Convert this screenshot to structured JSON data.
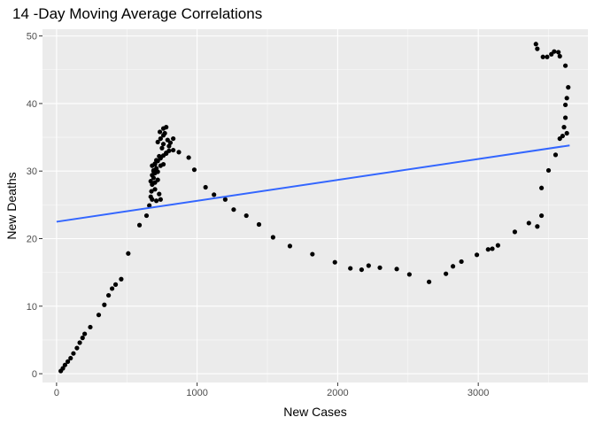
{
  "chart_data": {
    "type": "scatter",
    "title": "14 -Day Moving Average Correlations",
    "xlabel": "New  Cases",
    "ylabel": "New Deaths",
    "xlim": [
      -100,
      3780
    ],
    "ylim": [
      -1.3,
      51
    ],
    "x_ticks": [
      0,
      1000,
      2000,
      3000
    ],
    "x_tick_labels": [
      "0",
      "1000",
      "2000",
      "3000"
    ],
    "y_ticks": [
      0,
      10,
      20,
      30,
      40,
      50
    ],
    "y_tick_labels": [
      "0",
      "10",
      "20",
      "30",
      "40",
      "50"
    ],
    "grid": true,
    "legend": "none",
    "colors": {
      "panel": "#ebebeb",
      "grid_major": "#ffffff",
      "points": "#000000",
      "trend_line": "#3366ff"
    },
    "points": [
      [
        30,
        0.4
      ],
      [
        45,
        0.8
      ],
      [
        60,
        1.3
      ],
      [
        80,
        1.8
      ],
      [
        100,
        2.3
      ],
      [
        120,
        3.0
      ],
      [
        145,
        3.8
      ],
      [
        165,
        4.6
      ],
      [
        185,
        5.3
      ],
      [
        200,
        5.9
      ],
      [
        240,
        6.9
      ],
      [
        300,
        8.7
      ],
      [
        340,
        10.2
      ],
      [
        370,
        11.6
      ],
      [
        395,
        12.6
      ],
      [
        420,
        13.2
      ],
      [
        460,
        14.0
      ],
      [
        510,
        17.8
      ],
      [
        590,
        22.0
      ],
      [
        640,
        23.4
      ],
      [
        660,
        24.9
      ],
      [
        670,
        26.2
      ],
      [
        675,
        27.0
      ],
      [
        680,
        28.0
      ],
      [
        670,
        28.5
      ],
      [
        690,
        29.0
      ],
      [
        680,
        29.4
      ],
      [
        700,
        29.7
      ],
      [
        690,
        30.1
      ],
      [
        710,
        30.4
      ],
      [
        680,
        30.8
      ],
      [
        700,
        31.1
      ],
      [
        720,
        31.5
      ],
      [
        740,
        31.9
      ],
      [
        760,
        32.3
      ],
      [
        780,
        32.6
      ],
      [
        800,
        33.0
      ],
      [
        830,
        33.1
      ],
      [
        680,
        25.8
      ],
      [
        700,
        28.3
      ],
      [
        720,
        29.9
      ],
      [
        740,
        30.8
      ],
      [
        710,
        31.6
      ],
      [
        730,
        32.2
      ],
      [
        750,
        33.4
      ],
      [
        720,
        34.3
      ],
      [
        740,
        34.8
      ],
      [
        760,
        35.3
      ],
      [
        735,
        35.8
      ],
      [
        760,
        36.3
      ],
      [
        780,
        36.5
      ],
      [
        770,
        35.6
      ],
      [
        790,
        34.6
      ],
      [
        810,
        34.2
      ],
      [
        830,
        34.8
      ],
      [
        800,
        33.7
      ],
      [
        780,
        32.7
      ],
      [
        760,
        31.0
      ],
      [
        730,
        26.6
      ],
      [
        710,
        25.6
      ],
      [
        740,
        25.8
      ],
      [
        700,
        27.3
      ],
      [
        720,
        28.7
      ],
      [
        700,
        31.0
      ],
      [
        690,
        30.0
      ],
      [
        760,
        34.0
      ],
      [
        870,
        32.8
      ],
      [
        940,
        32.0
      ],
      [
        980,
        30.2
      ],
      [
        1060,
        27.6
      ],
      [
        1120,
        26.5
      ],
      [
        1200,
        25.8
      ],
      [
        1260,
        24.3
      ],
      [
        1350,
        23.4
      ],
      [
        1440,
        22.1
      ],
      [
        1540,
        20.2
      ],
      [
        1660,
        18.9
      ],
      [
        1820,
        17.7
      ],
      [
        1980,
        16.5
      ],
      [
        2090,
        15.6
      ],
      [
        2170,
        15.4
      ],
      [
        2220,
        16.0
      ],
      [
        2300,
        15.7
      ],
      [
        2420,
        15.5
      ],
      [
        2510,
        14.7
      ],
      [
        2650,
        13.6
      ],
      [
        2770,
        14.8
      ],
      [
        2820,
        15.9
      ],
      [
        2880,
        16.6
      ],
      [
        2990,
        17.6
      ],
      [
        3070,
        18.4
      ],
      [
        3100,
        18.5
      ],
      [
        3140,
        19.0
      ],
      [
        3260,
        21.0
      ],
      [
        3360,
        22.3
      ],
      [
        3420,
        21.8
      ],
      [
        3450,
        23.4
      ],
      [
        3450,
        27.5
      ],
      [
        3500,
        30.1
      ],
      [
        3550,
        32.4
      ],
      [
        3580,
        34.8
      ],
      [
        3600,
        35.2
      ],
      [
        3630,
        35.6
      ],
      [
        3610,
        36.5
      ],
      [
        3620,
        37.9
      ],
      [
        3620,
        39.8
      ],
      [
        3630,
        40.8
      ],
      [
        3640,
        42.4
      ],
      [
        3620,
        45.6
      ],
      [
        3580,
        47.0
      ],
      [
        3570,
        47.6
      ],
      [
        3540,
        47.7
      ],
      [
        3520,
        47.3
      ],
      [
        3490,
        46.9
      ],
      [
        3460,
        46.9
      ],
      [
        3420,
        48.1
      ],
      [
        3410,
        48.8
      ]
    ],
    "trend_line": {
      "x": [
        0,
        3650
      ],
      "y": [
        22.5,
        33.8
      ]
    }
  }
}
